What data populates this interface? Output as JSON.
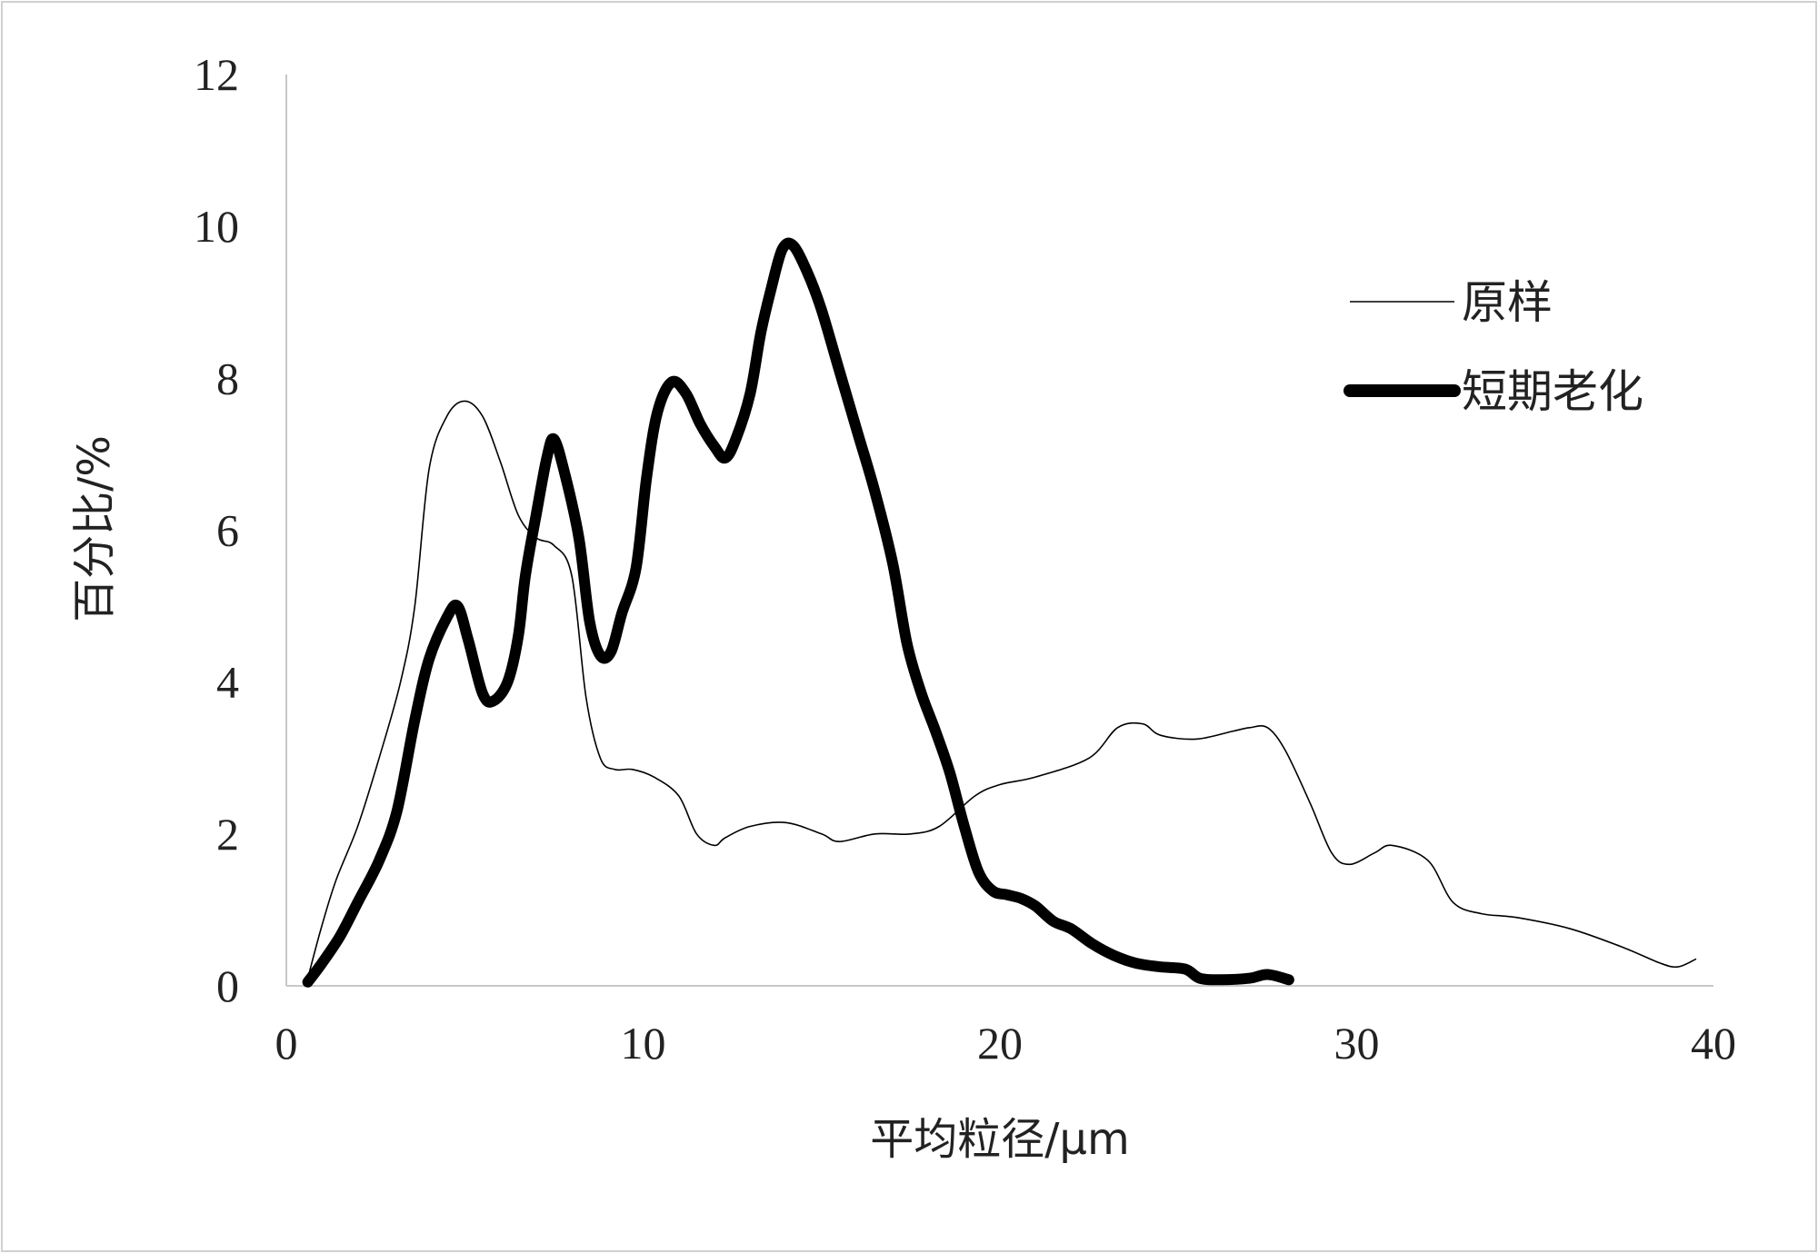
{
  "chart_data": {
    "type": "line",
    "title": "",
    "xlabel": "平均粒径/μm",
    "ylabel": "百分比/%",
    "xlim": [
      0,
      40
    ],
    "ylim": [
      0,
      12
    ],
    "x_ticks": [
      "0",
      "10",
      "20",
      "30",
      "40"
    ],
    "y_ticks": [
      "0",
      "2",
      "4",
      "6",
      "8",
      "10",
      "12"
    ],
    "grid": false,
    "legend_position": "right",
    "series": [
      {
        "name": "原样",
        "color": "#000000",
        "weight": "thin",
        "points": [
          [
            0.6,
            0.1
          ],
          [
            1.0,
            0.8
          ],
          [
            1.4,
            1.4
          ],
          [
            2.0,
            2.1
          ],
          [
            2.6,
            3.0
          ],
          [
            3.2,
            4.0
          ],
          [
            3.6,
            5.0
          ],
          [
            4.0,
            6.8
          ],
          [
            4.5,
            7.5
          ],
          [
            5.0,
            7.7
          ],
          [
            5.5,
            7.5
          ],
          [
            6.0,
            6.9
          ],
          [
            6.5,
            6.2
          ],
          [
            7.0,
            5.9
          ],
          [
            7.5,
            5.8
          ],
          [
            8.0,
            5.4
          ],
          [
            8.4,
            3.8
          ],
          [
            8.8,
            3.0
          ],
          [
            9.2,
            2.85
          ],
          [
            9.7,
            2.85
          ],
          [
            10.3,
            2.75
          ],
          [
            11.0,
            2.5
          ],
          [
            11.5,
            2.0
          ],
          [
            12.0,
            1.85
          ],
          [
            12.3,
            1.95
          ],
          [
            13.0,
            2.1
          ],
          [
            14.0,
            2.15
          ],
          [
            15.0,
            2.0
          ],
          [
            15.5,
            1.9
          ],
          [
            16.5,
            2.0
          ],
          [
            17.5,
            2.0
          ],
          [
            18.3,
            2.1
          ],
          [
            19.3,
            2.5
          ],
          [
            20.0,
            2.65
          ],
          [
            21.0,
            2.75
          ],
          [
            22.5,
            3.0
          ],
          [
            23.3,
            3.4
          ],
          [
            24.0,
            3.45
          ],
          [
            24.5,
            3.3
          ],
          [
            25.5,
            3.25
          ],
          [
            26.5,
            3.35
          ],
          [
            27.0,
            3.4
          ],
          [
            27.5,
            3.4
          ],
          [
            28.0,
            3.1
          ],
          [
            28.7,
            2.4
          ],
          [
            29.3,
            1.75
          ],
          [
            29.8,
            1.6
          ],
          [
            30.5,
            1.75
          ],
          [
            31.0,
            1.85
          ],
          [
            32.0,
            1.65
          ],
          [
            32.7,
            1.1
          ],
          [
            33.5,
            0.95
          ],
          [
            34.5,
            0.9
          ],
          [
            36.0,
            0.75
          ],
          [
            37.5,
            0.5
          ],
          [
            38.5,
            0.3
          ],
          [
            39.0,
            0.25
          ],
          [
            39.5,
            0.35
          ]
        ]
      },
      {
        "name": "短期老化",
        "color": "#000000",
        "weight": "thick",
        "points": [
          [
            0.6,
            0.05
          ],
          [
            1.0,
            0.3
          ],
          [
            1.5,
            0.65
          ],
          [
            2.0,
            1.1
          ],
          [
            2.6,
            1.65
          ],
          [
            3.1,
            2.3
          ],
          [
            3.6,
            3.5
          ],
          [
            4.0,
            4.3
          ],
          [
            4.5,
            4.85
          ],
          [
            4.8,
            5.0
          ],
          [
            5.1,
            4.55
          ],
          [
            5.5,
            3.85
          ],
          [
            5.8,
            3.75
          ],
          [
            6.2,
            4.0
          ],
          [
            6.5,
            4.6
          ],
          [
            6.7,
            5.4
          ],
          [
            7.0,
            6.2
          ],
          [
            7.3,
            6.95
          ],
          [
            7.5,
            7.2
          ],
          [
            7.8,
            6.75
          ],
          [
            8.2,
            5.9
          ],
          [
            8.5,
            4.8
          ],
          [
            8.8,
            4.35
          ],
          [
            9.1,
            4.4
          ],
          [
            9.4,
            4.9
          ],
          [
            9.8,
            5.5
          ],
          [
            10.1,
            6.7
          ],
          [
            10.4,
            7.55
          ],
          [
            10.8,
            7.95
          ],
          [
            11.2,
            7.8
          ],
          [
            11.6,
            7.4
          ],
          [
            12.0,
            7.1
          ],
          [
            12.3,
            6.95
          ],
          [
            12.6,
            7.2
          ],
          [
            13.0,
            7.8
          ],
          [
            13.3,
            8.6
          ],
          [
            13.6,
            9.2
          ],
          [
            13.9,
            9.7
          ],
          [
            14.2,
            9.75
          ],
          [
            14.6,
            9.4
          ],
          [
            15.0,
            8.9
          ],
          [
            15.5,
            8.1
          ],
          [
            16.0,
            7.3
          ],
          [
            16.5,
            6.5
          ],
          [
            17.0,
            5.55
          ],
          [
            17.4,
            4.5
          ],
          [
            17.8,
            3.85
          ],
          [
            18.2,
            3.35
          ],
          [
            18.6,
            2.8
          ],
          [
            19.0,
            2.1
          ],
          [
            19.4,
            1.5
          ],
          [
            19.8,
            1.25
          ],
          [
            20.2,
            1.2
          ],
          [
            20.6,
            1.15
          ],
          [
            21.0,
            1.05
          ],
          [
            21.5,
            0.85
          ],
          [
            22.0,
            0.75
          ],
          [
            22.6,
            0.55
          ],
          [
            23.2,
            0.4
          ],
          [
            23.8,
            0.3
          ],
          [
            24.5,
            0.25
          ],
          [
            25.2,
            0.22
          ],
          [
            25.6,
            0.1
          ],
          [
            26.2,
            0.08
          ],
          [
            27.0,
            0.1
          ],
          [
            27.5,
            0.15
          ],
          [
            28.1,
            0.08
          ]
        ]
      }
    ]
  }
}
